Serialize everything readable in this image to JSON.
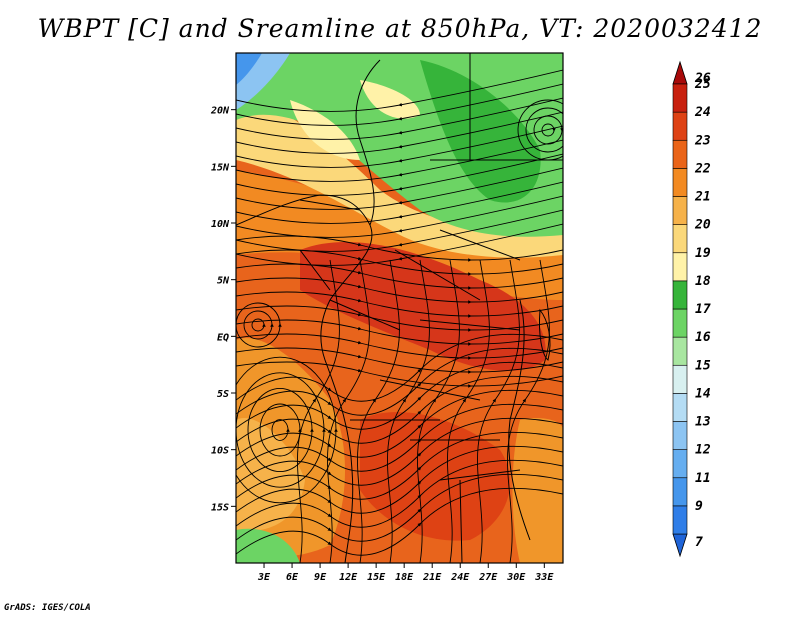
{
  "title": "WBPT [C] and Sreamline at 850hPa, VT: 2020032412",
  "credit": "GrADS: IGES/COLA",
  "map": {
    "lon_ticks": [
      "3E",
      "6E",
      "9E",
      "12E",
      "15E",
      "18E",
      "21E",
      "24E",
      "27E",
      "30E",
      "33E"
    ],
    "lat_ticks": [
      "20N",
      "15N",
      "10N",
      "5N",
      "EQ",
      "5S",
      "10S",
      "15S"
    ],
    "lon_range": [
      0,
      35
    ],
    "lat_range": [
      -20,
      25
    ]
  },
  "colorbar": {
    "labels": [
      "7",
      "9",
      "11",
      "12",
      "13",
      "14",
      "15",
      "16",
      "17",
      "18",
      "19",
      "20",
      "21",
      "22",
      "23",
      "24",
      "25",
      "26"
    ],
    "colors": [
      "#1f64d8",
      "#2f7ee8",
      "#4596ec",
      "#66aef0",
      "#8cc4f2",
      "#b4dcf4",
      "#d8f0f0",
      "#a8e6a0",
      "#6cd464",
      "#36b43a",
      "#fff2a8",
      "#fbd87a",
      "#f6b24a",
      "#f28a22",
      "#ea6418",
      "#de4214",
      "#c8200e",
      "#a80a0a"
    ]
  }
}
